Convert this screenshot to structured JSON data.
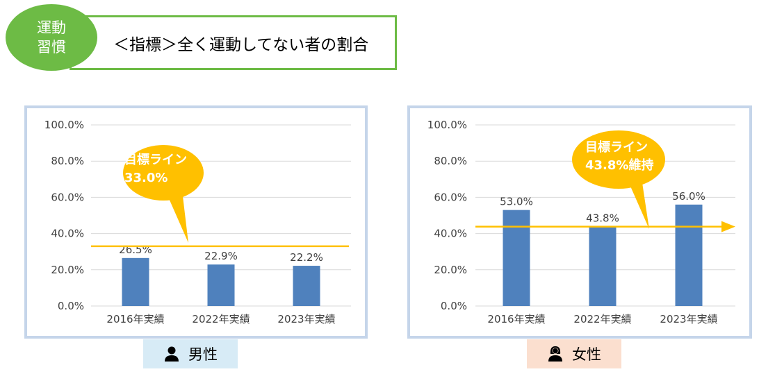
{
  "badge": {
    "line1": "運動",
    "line2": "習慣"
  },
  "title": "＜指標＞全く運動してない者の割合",
  "colors": {
    "green": "#6dbb45",
    "bar": "#4f81bd",
    "target": "#ffc000",
    "panel_border": "#c5d5ea"
  },
  "chart_data": [
    {
      "type": "bar",
      "categories": [
        "2016年実績",
        "2022年実績",
        "2023年実績"
      ],
      "values": [
        26.5,
        22.9,
        22.2
      ],
      "data_labels": [
        "26.5%",
        "22.9%",
        "22.2%"
      ],
      "ylim": [
        0,
        100
      ],
      "yticks": [
        "0.0%",
        "20.0%",
        "40.0%",
        "60.0%",
        "80.0%",
        "100.0%"
      ],
      "target_value": 33.0,
      "callout": {
        "line1": "目標ライン",
        "line2": "33.0%"
      },
      "grid": true,
      "label": "男性"
    },
    {
      "type": "bar",
      "categories": [
        "2016年実績",
        "2022年実績",
        "2023年実績"
      ],
      "values": [
        53.0,
        43.8,
        56.0
      ],
      "data_labels": [
        "53.0%",
        "43.8%",
        "56.0%"
      ],
      "ylim": [
        0,
        100
      ],
      "yticks": [
        "0.0%",
        "20.0%",
        "40.0%",
        "60.0%",
        "80.0%",
        "100.0%"
      ],
      "target_value": 43.8,
      "callout": {
        "line1": "目標ライン",
        "line2": "43.8%維持"
      },
      "grid": true,
      "label": "女性"
    }
  ]
}
